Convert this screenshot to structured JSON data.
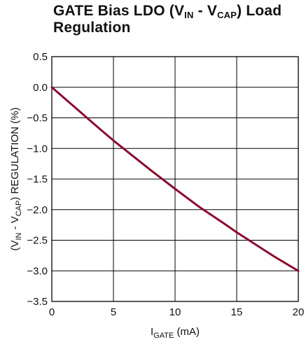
{
  "chart_data": {
    "type": "line",
    "title": {
      "p1": "GATE Bias LDO (V",
      "s1": "IN",
      "p2": " - V",
      "s2": "CAP",
      "p3": ") Load",
      "line2": "Regulation"
    },
    "xlabel": {
      "main": "I",
      "sub": "GATE",
      "rest": " (mA)"
    },
    "ylabel": {
      "a": "(V",
      "sub1": "IN",
      "b": " - V",
      "sub2": "CAP",
      "c": ") REGULATION (%)"
    },
    "xlim": [
      0,
      20
    ],
    "ylim": [
      -3.5,
      0.5
    ],
    "xticks": [
      "0",
      "5",
      "10",
      "15",
      "20"
    ],
    "yticks": [
      "0.5",
      "0.0",
      "−0.5",
      "−1.0",
      "−1.5",
      "−2.0",
      "−2.5",
      "−3.0",
      "−3.5"
    ],
    "grid": true,
    "series": [
      {
        "color": "#8b0a2e",
        "x": [
          0,
          2,
          4,
          5,
          6,
          8,
          10,
          12,
          14,
          15,
          16,
          18,
          20
        ],
        "y": [
          0,
          -0.35,
          -0.7,
          -0.87,
          -1.03,
          -1.35,
          -1.66,
          -1.96,
          -2.23,
          -2.37,
          -2.5,
          -2.76,
          -3.0
        ]
      }
    ]
  }
}
